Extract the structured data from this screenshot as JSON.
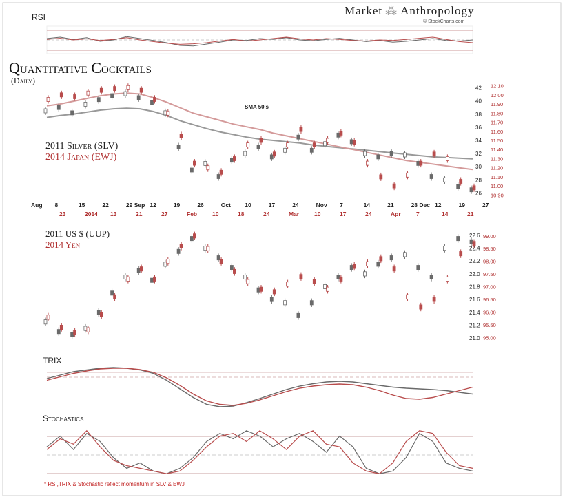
{
  "brand": {
    "left": "Market",
    "right": "Anthropology",
    "credit": "© StockCharts.com"
  },
  "title": "Quantitative Cocktails",
  "subtitle": "(Daily)",
  "panels": {
    "rsi": "RSI",
    "trix": "TRIX",
    "stochastics": "Stochastics"
  },
  "footnote": "* RSI,TRIX & Stochastic reflect momentum in SLV & EWJ",
  "colors": {
    "series_2011": "#6a6a6a",
    "series_2014": "#b84c4c",
    "ma_2011": "#999999",
    "ma_2014": "#d49a9a"
  },
  "chart_data": [
    {
      "type": "line",
      "panel": "top",
      "series_labels": [
        "2011 Silver (SLV)",
        "2014 Japan (EWJ)"
      ],
      "annotation": "SMA 50's",
      "x_labels_2011": [
        "Aug",
        "8",
        "15",
        "22",
        "29 Sep",
        "12",
        "19",
        "26",
        "Oct",
        "10",
        "17",
        "24",
        "Nov",
        "7",
        "14",
        "21",
        "28 Dec",
        "12",
        "19",
        "27"
      ],
      "x_labels_2014": [
        "23",
        "2014",
        "13",
        "21",
        "27",
        "Feb",
        "10",
        "18",
        "24",
        "Mar",
        "10",
        "17",
        "24",
        "Apr",
        "7",
        "14",
        "21"
      ],
      "y_ticks_left": [
        26,
        28,
        30,
        32,
        34,
        36,
        38,
        40,
        42
      ],
      "y_ticks_right": [
        10.9,
        11.0,
        11.1,
        11.2,
        11.3,
        11.4,
        11.5,
        11.6,
        11.7,
        11.8,
        11.9,
        12.0,
        12.1
      ],
      "ylim_left": [
        25,
        43
      ],
      "ylim_right": [
        10.85,
        12.15
      ],
      "series": [
        {
          "name": "2011 Silver (SLV)",
          "values": [
            38.5,
            39.0,
            38.2,
            39.5,
            40.2,
            40.8,
            41.1,
            40.5,
            39.8,
            38.2,
            33.0,
            29.5,
            30.5,
            28.5,
            31.0,
            32.0,
            33.0,
            31.5,
            32.5,
            34.5,
            32.5,
            33.5,
            34.8,
            33.8,
            32.0,
            31.5,
            32.0,
            31.8,
            30.5,
            28.5,
            28.0,
            27.0,
            26.5
          ]
        },
        {
          "name": "2014 Japan (EWJ)",
          "values": [
            11.95,
            12.0,
            11.98,
            12.02,
            12.05,
            12.07,
            12.08,
            12.05,
            11.95,
            11.8,
            11.55,
            11.25,
            11.2,
            11.15,
            11.3,
            11.45,
            11.5,
            11.35,
            11.45,
            11.62,
            11.45,
            11.5,
            11.58,
            11.48,
            11.25,
            11.1,
            11.0,
            11.12,
            11.25,
            11.35,
            11.3,
            11.05,
            10.98
          ]
        },
        {
          "name": "SMA 50 (2011)",
          "values": [
            37.5,
            37.8,
            38.0,
            38.3,
            38.6,
            38.8,
            38.9,
            38.8,
            38.4,
            37.8,
            37.0,
            36.4,
            35.8,
            35.3,
            34.9,
            34.5,
            34.2,
            34.0,
            33.8,
            33.6,
            33.3,
            33.1,
            32.9,
            32.7,
            32.5,
            32.3,
            32.1,
            31.9,
            31.7,
            31.5,
            31.4,
            31.3,
            31.2
          ]
        },
        {
          "name": "SMA 50 (2014)",
          "values": [
            11.88,
            11.9,
            11.93,
            11.96,
            11.99,
            12.01,
            12.02,
            12.01,
            11.97,
            11.92,
            11.86,
            11.8,
            11.76,
            11.72,
            11.68,
            11.65,
            11.62,
            11.58,
            11.55,
            11.52,
            11.49,
            11.46,
            11.43,
            11.4,
            11.37,
            11.34,
            11.31,
            11.28,
            11.26,
            11.24,
            11.22,
            11.2,
            11.18
          ]
        }
      ]
    },
    {
      "type": "line",
      "panel": "middle",
      "series_labels": [
        "2011 US $ (UUP)",
        "2014 Yen"
      ],
      "y_ticks_left": [
        21.0,
        21.2,
        21.4,
        21.6,
        21.8,
        22.0,
        22.2,
        22.4,
        22.6
      ],
      "y_ticks_right": [
        95.0,
        95.5,
        96.0,
        96.5,
        97.0,
        97.5,
        98.0,
        98.5,
        99.0
      ],
      "ylim_left": [
        20.85,
        22.75
      ],
      "ylim_right": [
        94.6,
        99.4
      ],
      "series": [
        {
          "name": "2011 US $ (UUP)",
          "values": [
            21.25,
            21.1,
            21.05,
            21.15,
            21.4,
            21.7,
            21.95,
            22.05,
            21.9,
            22.15,
            22.35,
            22.55,
            22.4,
            22.25,
            22.1,
            21.95,
            21.75,
            21.6,
            21.55,
            21.35,
            21.55,
            21.8,
            21.95,
            22.1,
            22.0,
            22.15,
            22.25,
            22.3,
            22.1,
            21.95,
            22.4,
            22.55,
            22.5
          ]
        },
        {
          "name": "2014 Yen",
          "values": [
            95.8,
            95.4,
            95.2,
            95.3,
            95.9,
            96.6,
            97.3,
            97.7,
            97.3,
            98.0,
            98.6,
            99.0,
            98.5,
            98.0,
            97.6,
            97.2,
            96.9,
            96.8,
            97.1,
            97.4,
            97.2,
            96.9,
            97.3,
            97.8,
            97.9,
            98.1,
            97.7,
            96.6,
            96.2,
            96.5,
            97.3,
            98.3,
            98.7
          ]
        }
      ]
    },
    {
      "type": "line",
      "panel": "rsi",
      "series": [
        {
          "name": "2011 Silver (SLV)",
          "values": [
            55,
            60,
            52,
            58,
            45,
            50,
            62,
            55,
            48,
            40,
            30,
            28,
            35,
            42,
            50,
            48,
            55,
            52,
            58,
            50,
            47,
            52,
            56,
            50,
            44,
            48,
            42,
            45,
            50,
            55,
            48,
            46,
            50
          ]
        },
        {
          "name": "2014 Japan (EWJ)",
          "values": [
            52,
            56,
            50,
            54,
            48,
            52,
            58,
            50,
            44,
            38,
            34,
            36,
            40,
            46,
            52,
            46,
            50,
            55,
            60,
            54,
            50,
            55,
            52,
            48,
            46,
            50,
            48,
            52,
            56,
            60,
            52,
            44,
            40
          ]
        }
      ]
    },
    {
      "type": "line",
      "panel": "trix",
      "series": [
        {
          "name": "2011 Silver (SLV)",
          "values": [
            0.2,
            0.3,
            0.4,
            0.45,
            0.5,
            0.52,
            0.5,
            0.45,
            0.35,
            0.15,
            -0.1,
            -0.35,
            -0.55,
            -0.62,
            -0.6,
            -0.5,
            -0.38,
            -0.25,
            -0.12,
            -0.02,
            0.05,
            0.1,
            0.12,
            0.1,
            0.05,
            0.0,
            -0.05,
            -0.08,
            -0.1,
            -0.12,
            -0.15,
            -0.2,
            -0.25
          ]
        },
        {
          "name": "2014 Japan (EWJ)",
          "values": [
            0.15,
            0.25,
            0.35,
            0.42,
            0.48,
            0.5,
            0.5,
            0.46,
            0.38,
            0.22,
            0.0,
            -0.25,
            -0.45,
            -0.55,
            -0.58,
            -0.52,
            -0.42,
            -0.3,
            -0.18,
            -0.08,
            -0.02,
            0.02,
            0.04,
            0.02,
            -0.05,
            -0.15,
            -0.28,
            -0.38,
            -0.4,
            -0.35,
            -0.25,
            -0.15,
            -0.05
          ]
        }
      ]
    },
    {
      "type": "line",
      "panel": "stochastics",
      "series": [
        {
          "name": "2011 Silver (SLV)",
          "values": [
            60,
            80,
            55,
            85,
            70,
            40,
            20,
            30,
            15,
            10,
            20,
            40,
            70,
            85,
            75,
            90,
            80,
            60,
            75,
            85,
            70,
            50,
            80,
            60,
            20,
            10,
            15,
            40,
            85,
            70,
            30,
            20,
            15
          ]
        },
        {
          "name": "2014 Japan (EWJ)",
          "values": [
            55,
            75,
            65,
            90,
            60,
            35,
            25,
            20,
            15,
            10,
            15,
            35,
            60,
            80,
            85,
            70,
            90,
            75,
            55,
            80,
            90,
            65,
            60,
            30,
            15,
            10,
            30,
            70,
            90,
            85,
            50,
            25,
            20
          ]
        }
      ]
    }
  ]
}
